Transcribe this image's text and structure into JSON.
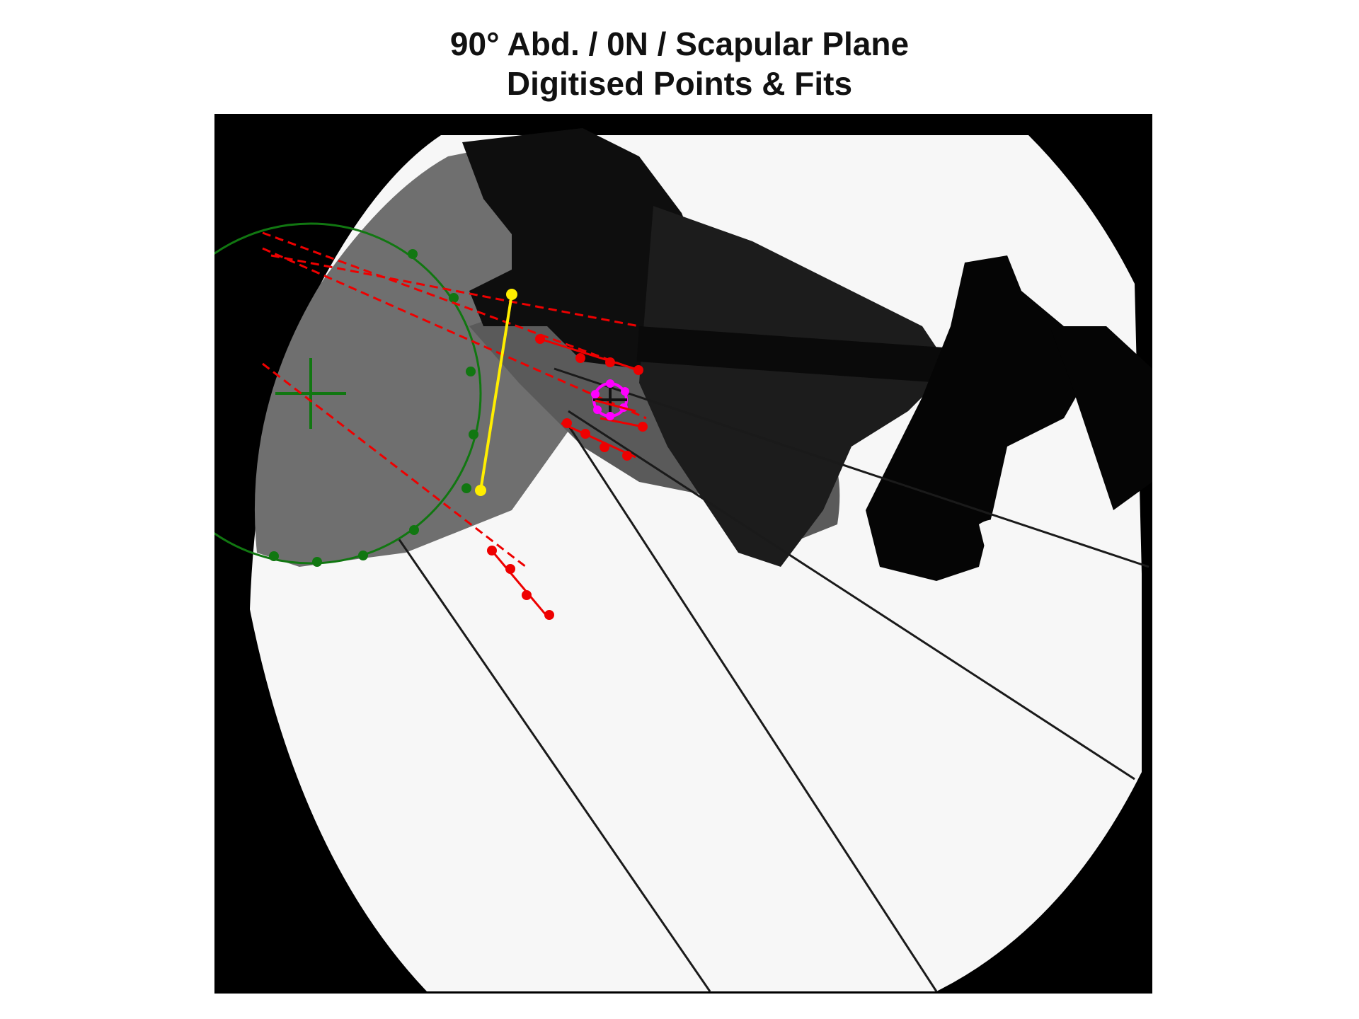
{
  "title": {
    "line1": "90° Abd. / 0N / Scapular Plane",
    "line2": "Digitised Points & Fits"
  },
  "image": {
    "description_hidden": "",
    "background": "#000000",
    "field": "#ffffff"
  },
  "overlay": {
    "colors": {
      "circle_fit": "#117711",
      "line_fit": "#ee0000",
      "axis_marker": "#ffee00",
      "small_circle": "#ff00ff"
    },
    "legend": []
  }
}
